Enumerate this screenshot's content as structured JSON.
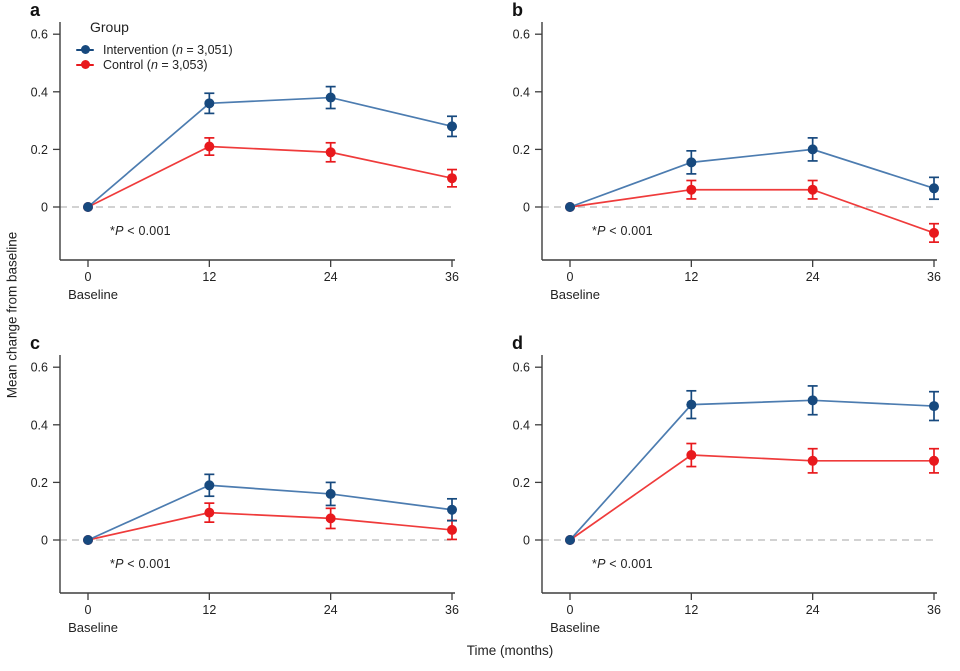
{
  "figure": {
    "ylabel": "Mean change from baseline",
    "xlabel": "Time (months)",
    "colors": {
      "axis": "#3d3d3d",
      "text": "#222222",
      "zero_line": "#b8b8b8",
      "intervention_marker": "#17497E",
      "intervention_line": "#4C7CB0",
      "control_marker": "#E8191D",
      "control_line": "#EF3B3B"
    }
  },
  "legend": {
    "title": "Group",
    "items": [
      {
        "pre": "Intervention (",
        "nvar": "n",
        "post": " = 3,051)"
      },
      {
        "pre": "Control (",
        "nvar": "n",
        "post": " = 3,053)"
      }
    ]
  },
  "annotation": {
    "star": "*",
    "pvar": "P",
    "rest": " < 0.001"
  },
  "panels": {
    "a": {
      "label": "a"
    },
    "b": {
      "label": "b"
    },
    "c": {
      "label": "c"
    },
    "d": {
      "label": "d"
    }
  },
  "chart_data": [
    {
      "panel": "a",
      "type": "line",
      "x": [
        0,
        12,
        24,
        36
      ],
      "x_tick_labels": [
        "0",
        "12",
        "24",
        "36"
      ],
      "baseline_label": "Baseline",
      "y_ticks": [
        0,
        0.2,
        0.4,
        0.6
      ],
      "y_tick_labels": [
        "0",
        "0.2",
        "0.4",
        "0.6"
      ],
      "ylim": [
        -0.18,
        0.64
      ],
      "grid": false,
      "legend_position": "top-left",
      "annotation": "*P < 0.001",
      "series": [
        {
          "name": "Intervention (n = 3,051)",
          "values": [
            0,
            0.36,
            0.38,
            0.28
          ],
          "errors": [
            0,
            0.035,
            0.038,
            0.035
          ]
        },
        {
          "name": "Control (n = 3,053)",
          "values": [
            0,
            0.21,
            0.19,
            0.1
          ],
          "errors": [
            0,
            0.03,
            0.033,
            0.03
          ]
        }
      ]
    },
    {
      "panel": "b",
      "type": "line",
      "x": [
        0,
        12,
        24,
        36
      ],
      "x_tick_labels": [
        "0",
        "12",
        "24",
        "36"
      ],
      "baseline_label": "Baseline",
      "y_ticks": [
        0,
        0.2,
        0.4,
        0.6
      ],
      "y_tick_labels": [
        "0",
        "0.2",
        "0.4",
        "0.6"
      ],
      "ylim": [
        -0.18,
        0.64
      ],
      "grid": false,
      "legend_position": null,
      "annotation": "*P < 0.001",
      "series": [
        {
          "name": "Intervention (n = 3,051)",
          "values": [
            0,
            0.155,
            0.2,
            0.065
          ],
          "errors": [
            0,
            0.04,
            0.04,
            0.038
          ]
        },
        {
          "name": "Control (n = 3,053)",
          "values": [
            0,
            0.06,
            0.06,
            -0.09
          ],
          "errors": [
            0,
            0.032,
            0.032,
            0.032
          ]
        }
      ]
    },
    {
      "panel": "c",
      "type": "line",
      "x": [
        0,
        12,
        24,
        36
      ],
      "x_tick_labels": [
        "0",
        "12",
        "24",
        "36"
      ],
      "baseline_label": "Baseline",
      "y_ticks": [
        0,
        0.2,
        0.4,
        0.6
      ],
      "y_tick_labels": [
        "0",
        "0.2",
        "0.4",
        "0.6"
      ],
      "ylim": [
        -0.18,
        0.64
      ],
      "grid": false,
      "legend_position": null,
      "annotation": "*P < 0.001",
      "series": [
        {
          "name": "Intervention (n = 3,051)",
          "values": [
            0,
            0.19,
            0.16,
            0.105
          ],
          "errors": [
            0,
            0.038,
            0.04,
            0.038
          ]
        },
        {
          "name": "Control (n = 3,053)",
          "values": [
            0,
            0.095,
            0.075,
            0.035
          ],
          "errors": [
            0,
            0.033,
            0.035,
            0.033
          ]
        }
      ]
    },
    {
      "panel": "d",
      "type": "line",
      "x": [
        0,
        12,
        24,
        36
      ],
      "x_tick_labels": [
        "0",
        "12",
        "24",
        "36"
      ],
      "baseline_label": "Baseline",
      "y_ticks": [
        0,
        0.2,
        0.4,
        0.6
      ],
      "y_tick_labels": [
        "0",
        "0.2",
        "0.4",
        "0.6"
      ],
      "ylim": [
        -0.18,
        0.64
      ],
      "grid": false,
      "legend_position": null,
      "annotation": "*P < 0.001",
      "series": [
        {
          "name": "Intervention (n = 3,051)",
          "values": [
            0,
            0.47,
            0.485,
            0.465
          ],
          "errors": [
            0,
            0.048,
            0.05,
            0.05
          ]
        },
        {
          "name": "Control (n = 3,053)",
          "values": [
            0,
            0.295,
            0.275,
            0.275
          ],
          "errors": [
            0,
            0.04,
            0.042,
            0.042
          ]
        }
      ]
    }
  ]
}
